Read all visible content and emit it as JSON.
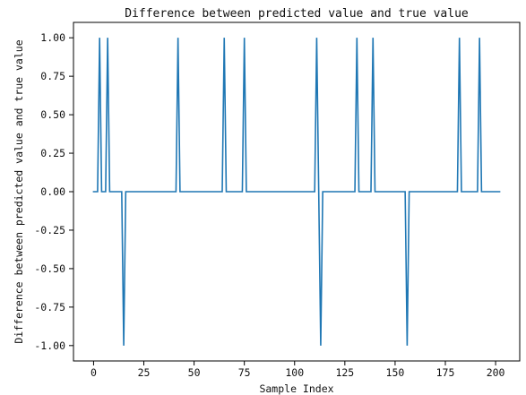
{
  "chart_data": {
    "type": "line",
    "title": "Difference between predicted value and true value",
    "xlabel": "Sample Index",
    "ylabel": "Difference between predicted value and true value",
    "xlim": [
      -10,
      212
    ],
    "ylim": [
      -1.1,
      1.1
    ],
    "x_ticks": [
      0,
      25,
      50,
      75,
      100,
      125,
      150,
      175,
      200
    ],
    "x_tick_labels": [
      "0",
      "25",
      "50",
      "75",
      "100",
      "125",
      "150",
      "175",
      "200"
    ],
    "y_ticks": [
      -1.0,
      -0.75,
      -0.5,
      -0.25,
      0.0,
      0.25,
      0.5,
      0.75,
      1.0
    ],
    "y_tick_labels": [
      "-1.00",
      "-0.75",
      "-0.50",
      "-0.25",
      "0.00",
      "0.25",
      "0.50",
      "0.75",
      "1.00"
    ],
    "grid": false,
    "color": "#1f77b4",
    "series": [
      {
        "x": [
          0,
          1,
          2,
          3,
          4,
          5,
          6,
          7,
          8,
          9,
          10,
          11,
          12,
          13,
          14,
          15,
          16,
          17,
          18,
          19,
          20,
          21,
          22,
          23,
          24,
          25,
          26,
          27,
          28,
          29,
          30,
          31,
          32,
          33,
          34,
          35,
          36,
          37,
          38,
          39,
          40,
          41,
          42,
          43,
          44,
          45,
          46,
          47,
          48,
          49,
          50,
          51,
          52,
          53,
          54,
          55,
          56,
          57,
          58,
          59,
          60,
          61,
          62,
          63,
          64,
          65,
          66,
          67,
          68,
          69,
          70,
          71,
          72,
          73,
          74,
          75,
          76,
          77,
          78,
          79,
          80,
          81,
          82,
          83,
          84,
          85,
          86,
          87,
          88,
          89,
          90,
          91,
          92,
          93,
          94,
          95,
          96,
          97,
          98,
          99,
          100,
          101,
          102,
          103,
          104,
          105,
          106,
          107,
          108,
          109,
          110,
          111,
          112,
          113,
          114,
          115,
          116,
          117,
          118,
          119,
          120,
          121,
          122,
          123,
          124,
          125,
          126,
          127,
          128,
          129,
          130,
          131,
          132,
          133,
          134,
          135,
          136,
          137,
          138,
          139,
          140,
          141,
          142,
          143,
          144,
          145,
          146,
          147,
          148,
          149,
          150,
          151,
          152,
          153,
          154,
          155,
          156,
          157,
          158,
          159,
          160,
          161,
          162,
          163,
          164,
          165,
          166,
          167,
          168,
          169,
          170,
          171,
          172,
          173,
          174,
          175,
          176,
          177,
          178,
          179,
          180,
          181,
          182,
          183,
          184,
          185,
          186,
          187,
          188,
          189,
          190,
          191,
          192,
          193,
          194,
          195,
          196,
          197,
          198,
          199,
          200,
          201,
          202
        ],
        "y": [
          0,
          0,
          0,
          1,
          0,
          0,
          0,
          1,
          0,
          0,
          0,
          0,
          0,
          0,
          0,
          -1,
          0,
          0,
          0,
          0,
          0,
          0,
          0,
          0,
          0,
          0,
          0,
          0,
          0,
          0,
          0,
          0,
          0,
          0,
          0,
          0,
          0,
          0,
          0,
          0,
          0,
          0,
          1,
          0,
          0,
          0,
          0,
          0,
          0,
          0,
          0,
          0,
          0,
          0,
          0,
          0,
          0,
          0,
          0,
          0,
          0,
          0,
          0,
          0,
          0,
          1,
          0,
          0,
          0,
          0,
          0,
          0,
          0,
          0,
          0,
          1,
          0,
          0,
          0,
          0,
          0,
          0,
          0,
          0,
          0,
          0,
          0,
          0,
          0,
          0,
          0,
          0,
          0,
          0,
          0,
          0,
          0,
          0,
          0,
          0,
          0,
          0,
          0,
          0,
          0,
          0,
          0,
          0,
          0,
          0,
          0,
          1,
          0,
          -1,
          0,
          0,
          0,
          0,
          0,
          0,
          0,
          0,
          0,
          0,
          0,
          0,
          0,
          0,
          0,
          0,
          0,
          1,
          0,
          0,
          0,
          0,
          0,
          0,
          0,
          1,
          0,
          0,
          0,
          0,
          0,
          0,
          0,
          0,
          0,
          0,
          0,
          0,
          0,
          0,
          0,
          0,
          -1,
          0,
          0,
          0,
          0,
          0,
          0,
          0,
          0,
          0,
          0,
          0,
          0,
          0,
          0,
          0,
          0,
          0,
          0,
          0,
          0,
          0,
          0,
          0,
          0,
          0,
          1,
          0,
          0,
          0,
          0,
          0,
          0,
          0,
          0,
          0,
          1,
          0,
          0,
          0,
          0,
          0,
          0,
          0,
          0,
          0,
          0
        ]
      }
    ]
  }
}
